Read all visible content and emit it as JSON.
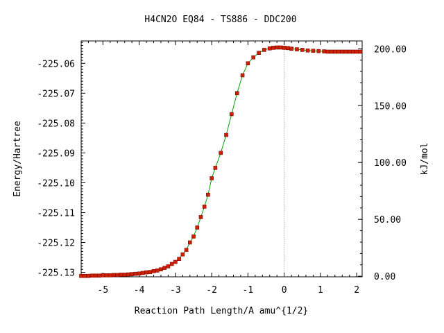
{
  "chart_data": {
    "type": "line",
    "title": "H4CN2O   EQ84 - TS886 - DDC200",
    "xlabel": "Reaction Path Length/A amu^{1/2}",
    "ylabel": "Energy/Hartree",
    "y2label": "kJ/mol",
    "xlim": [
      -5.6,
      2.15
    ],
    "ylim": [
      -225.1315,
      -225.0525
    ],
    "x_ticks": [
      -5,
      -4,
      -3,
      -2,
      -1,
      0,
      1,
      2
    ],
    "x_tick_labels": [
      "-5",
      "-4",
      "-3",
      "-2",
      "-1",
      "0",
      "1",
      "2"
    ],
    "y_ticks": [
      -225.06,
      -225.07,
      -225.08,
      -225.09,
      -225.1,
      -225.11,
      -225.12,
      -225.13
    ],
    "y_tick_labels": [
      "-225.06",
      "-225.07",
      "-225.08",
      "-225.09",
      "-225.10",
      "-225.11",
      "-225.12",
      "-225.13"
    ],
    "y2_ticks": [
      0,
      50,
      100,
      150,
      200
    ],
    "y2_tick_labels": [
      "0.00",
      "50.00",
      "100.00",
      "150.00",
      "200.00"
    ],
    "y2_reference_energy": -225.1313,
    "hartree_to_kj": 2625.5,
    "grid": false,
    "vline_x": 0,
    "colors": {
      "line": "#00a000",
      "marker": "#cc2200",
      "marker_edge": "#880000",
      "vline": "#888888",
      "axis": "#000000"
    },
    "series": [
      {
        "x": [
          -5.6,
          -5.5,
          -5.4,
          -5.3,
          -5.2,
          -5.1,
          -5.0,
          -4.9,
          -4.8,
          -4.7,
          -4.6,
          -4.5,
          -4.4,
          -4.3,
          -4.2,
          -4.1,
          -4.0,
          -3.9,
          -3.8,
          -3.7,
          -3.6,
          -3.5,
          -3.4,
          -3.3,
          -3.2,
          -3.1,
          -3.0,
          -2.9,
          -2.8,
          -2.7,
          -2.6,
          -2.5,
          -2.4,
          -2.3,
          -2.2,
          -2.1,
          -2.0,
          -1.9,
          -1.75,
          -1.6,
          -1.45,
          -1.3,
          -1.15,
          -1.0,
          -0.85,
          -0.7,
          -0.55,
          -0.4,
          -0.3,
          -0.2,
          -0.1,
          0.0,
          0.1,
          0.2,
          0.35,
          0.5,
          0.65,
          0.8,
          0.95,
          1.1,
          1.2,
          1.3,
          1.4,
          1.5,
          1.6,
          1.7,
          1.8,
          1.9,
          2.0,
          2.1
        ],
        "y": [
          -225.1312,
          -225.1312,
          -225.1312,
          -225.1311,
          -225.1311,
          -225.1311,
          -225.131,
          -225.131,
          -225.131,
          -225.1309,
          -225.1309,
          -225.1308,
          -225.1308,
          -225.1307,
          -225.1306,
          -225.1305,
          -225.1304,
          -225.1302,
          -225.13,
          -225.1299,
          -225.1296,
          -225.1294,
          -225.129,
          -225.1285,
          -225.128,
          -225.1272,
          -225.1265,
          -225.1255,
          -225.124,
          -225.1225,
          -225.12,
          -225.118,
          -225.115,
          -225.1115,
          -225.108,
          -225.104,
          -225.0985,
          -225.095,
          -225.09,
          -225.084,
          -225.077,
          -225.07,
          -225.064,
          -225.06,
          -225.058,
          -225.0565,
          -225.0555,
          -225.055,
          -225.0548,
          -225.0547,
          -225.0547,
          -225.0548,
          -225.0549,
          -225.0551,
          -225.0553,
          -225.0555,
          -225.0557,
          -225.0558,
          -225.0559,
          -225.056,
          -225.0561,
          -225.0561,
          -225.0561,
          -225.0561,
          -225.0561,
          -225.0561,
          -225.0561,
          -225.0561,
          -225.0561,
          -225.0561
        ]
      }
    ]
  }
}
